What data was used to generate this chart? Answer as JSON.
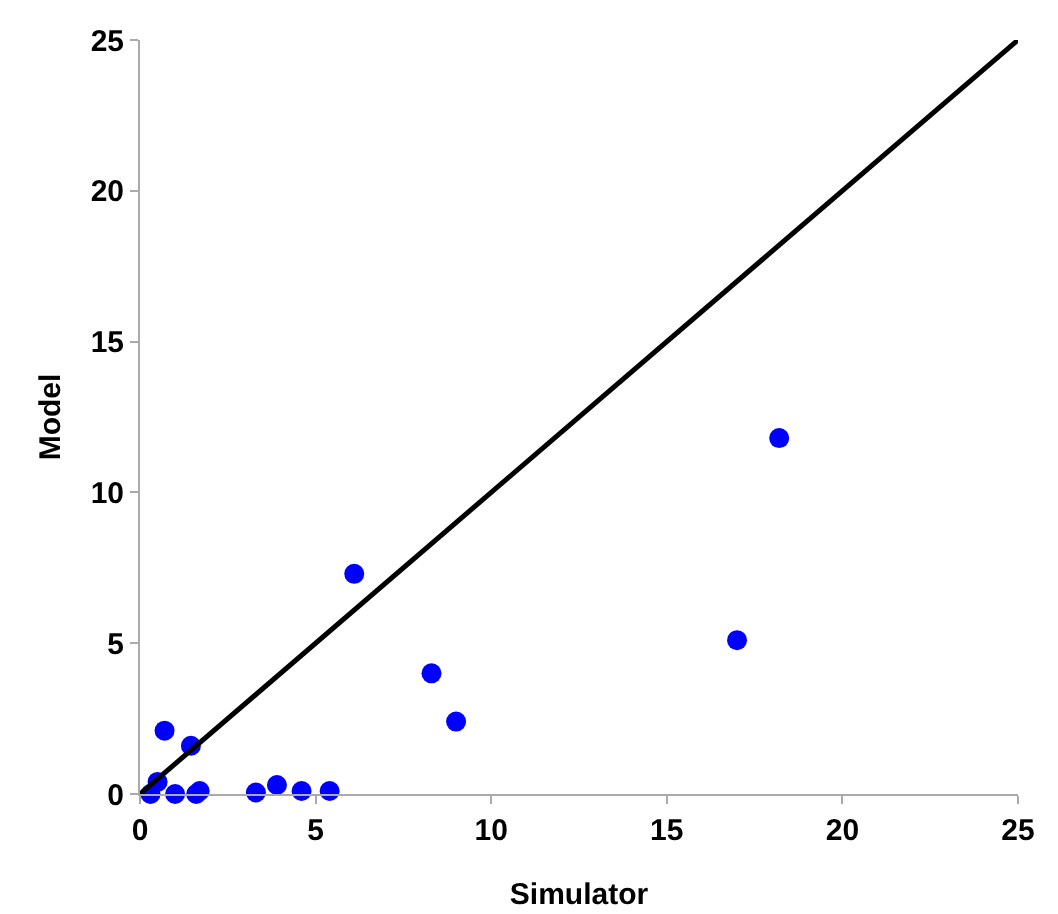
{
  "chart_data": {
    "type": "scatter",
    "xlabel": "Simulator",
    "ylabel": "Model",
    "xlim": [
      0,
      25
    ],
    "ylim": [
      0,
      25
    ],
    "xticks": [
      0,
      5,
      10,
      15,
      20,
      25
    ],
    "yticks": [
      0,
      5,
      10,
      15,
      20,
      25
    ],
    "grid": false,
    "marker": "circle",
    "series": [
      {
        "color": "#0000ff",
        "x": [
          0.3,
          0.5,
          1.0,
          0.7,
          1.45,
          1.6,
          1.7,
          3.3,
          3.9,
          4.6,
          5.4,
          6.1,
          8.3,
          9.0,
          17.0,
          18.2
        ],
        "values": [
          0,
          0.4,
          0,
          2.1,
          1.6,
          0,
          0.1,
          0.05,
          0.3,
          0.1,
          0.1,
          7.3,
          4.0,
          2.4,
          5.1,
          11.8
        ]
      },
      {
        "type": "line",
        "color": "#000000",
        "line_style": "solid",
        "marker": "none",
        "x": [
          0,
          25
        ],
        "values": [
          0,
          25
        ]
      }
    ]
  }
}
